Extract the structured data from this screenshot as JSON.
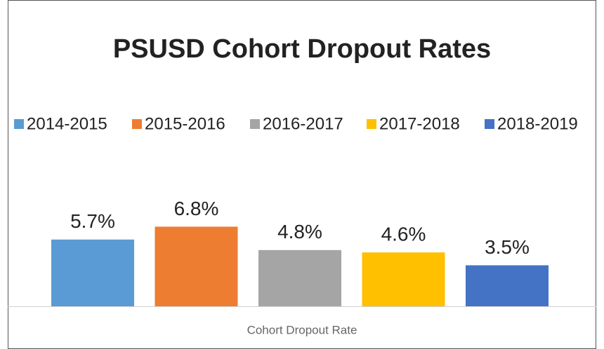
{
  "chart_data": {
    "type": "bar",
    "title": "PSUSD Cohort Dropout Rates",
    "categories": [
      "Cohort Dropout Rate"
    ],
    "series": [
      {
        "name": "2014-2015",
        "color": "#5b9bd5",
        "values": [
          5.7
        ],
        "value_labels": [
          "5.7%"
        ]
      },
      {
        "name": "2015-2016",
        "color": "#ed7d31",
        "values": [
          6.8
        ],
        "value_labels": [
          "6.8%"
        ]
      },
      {
        "name": "2016-2017",
        "color": "#a5a5a5",
        "values": [
          4.8
        ],
        "value_labels": [
          "4.8%"
        ]
      },
      {
        "name": "2017-2018",
        "color": "#ffc000",
        "values": [
          4.6
        ],
        "value_labels": [
          "4.6%"
        ]
      },
      {
        "name": "2018-2019",
        "color": "#4472c4",
        "values": [
          3.5
        ],
        "value_labels": [
          "3.5%"
        ]
      }
    ],
    "legend": "top"
  }
}
